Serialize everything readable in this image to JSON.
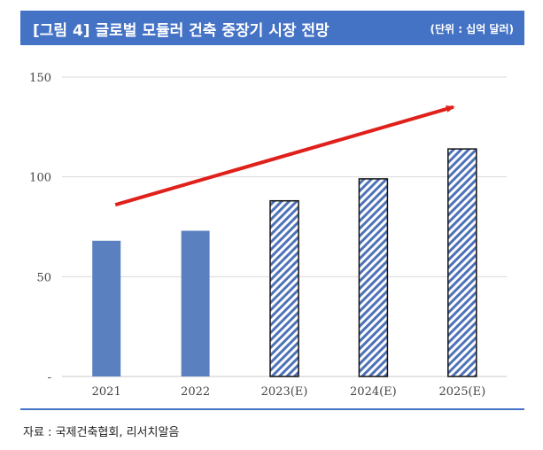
{
  "header": {
    "title": "[그림 4] 글로벌 모듈러 건축 중장기 시장 전망",
    "unit": "(단위 : 십억 달러)"
  },
  "footer": {
    "source": "자료 : 국제건축협회, 리서치알음"
  },
  "colors": {
    "accent": "#4472c4",
    "bar_actual": "#5b80c0",
    "bar_forecast_stripe": "#4e72b8",
    "arrow": "#e0201b"
  },
  "chart_data": {
    "type": "bar",
    "categories": [
      "2021",
      "2022",
      "2023(E)",
      "2024(E)",
      "2025(E)"
    ],
    "values": [
      68,
      73,
      88,
      99,
      114
    ],
    "forecast": [
      false,
      false,
      true,
      true,
      true
    ],
    "ylim": [
      0,
      150
    ],
    "yticks": [
      {
        "value": 0,
        "label": "-"
      },
      {
        "value": 50,
        "label": "50"
      },
      {
        "value": 100,
        "label": "100"
      },
      {
        "value": 150,
        "label": "150"
      }
    ],
    "grid": true,
    "xlabel": "",
    "ylabel": "",
    "trend_arrow": {
      "from_value": 86,
      "to_value": 135,
      "direction": "up-right"
    }
  }
}
